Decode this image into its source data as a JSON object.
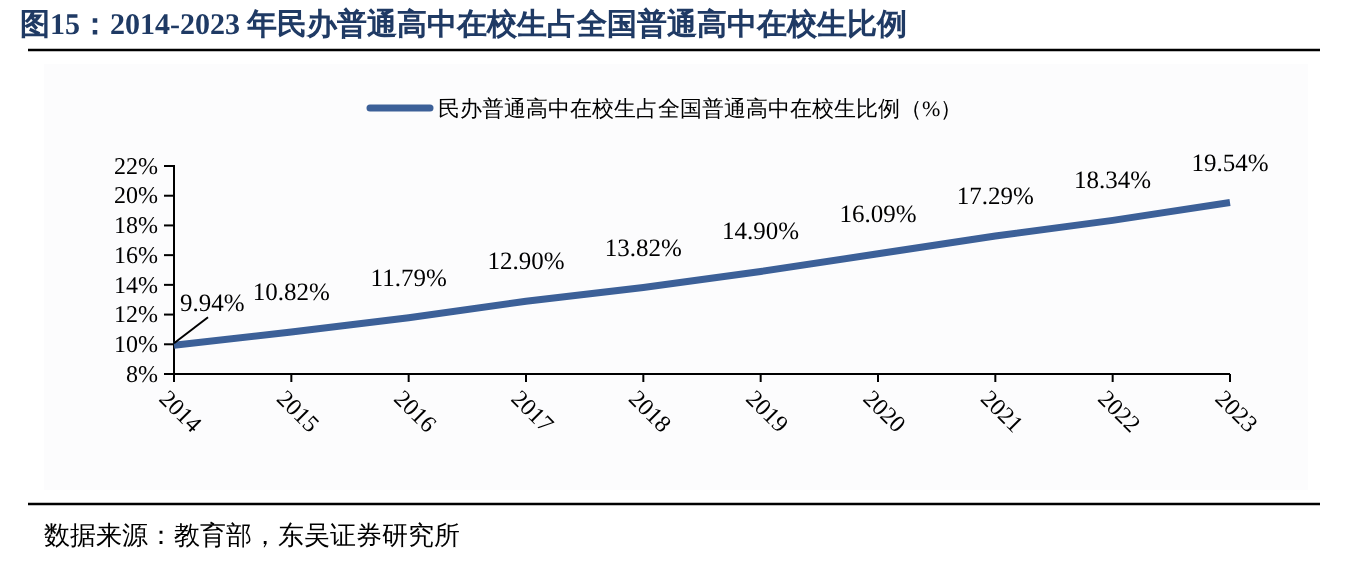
{
  "chart_data": {
    "type": "line",
    "title": "图15：2014-2023 年民办普通高中在校生占全国普通高中在校生比例",
    "categories": [
      "2014",
      "2015",
      "2016",
      "2017",
      "2018",
      "2019",
      "2020",
      "2021",
      "2022",
      "2023"
    ],
    "series": [
      {
        "name": "民办普通高中在校生占全国普通高中在校生比例（%）",
        "color": "#3c6098",
        "values": [
          9.94,
          10.82,
          11.79,
          12.9,
          13.82,
          14.9,
          16.09,
          17.29,
          18.34,
          19.54
        ],
        "value_labels": [
          "9.94%",
          "10.82%",
          "11.79%",
          "12.90%",
          "13.82%",
          "14.90%",
          "16.09%",
          "17.29%",
          "18.34%",
          "19.54%"
        ]
      }
    ],
    "ylim": [
      8,
      22
    ],
    "yticks": [
      {
        "value": 8,
        "label": "8%"
      },
      {
        "value": 10,
        "label": "10%"
      },
      {
        "value": 12,
        "label": "12%"
      },
      {
        "value": 14,
        "label": "14%"
      },
      {
        "value": 16,
        "label": "16%"
      },
      {
        "value": 18,
        "label": "18%"
      },
      {
        "value": 20,
        "label": "20%"
      },
      {
        "value": 22,
        "label": "22%"
      }
    ],
    "legend": "top",
    "grid": false,
    "marker": "none",
    "line_style": "solid",
    "annotations": [
      "数据来源：教育部，东吴证券研究所"
    ]
  }
}
